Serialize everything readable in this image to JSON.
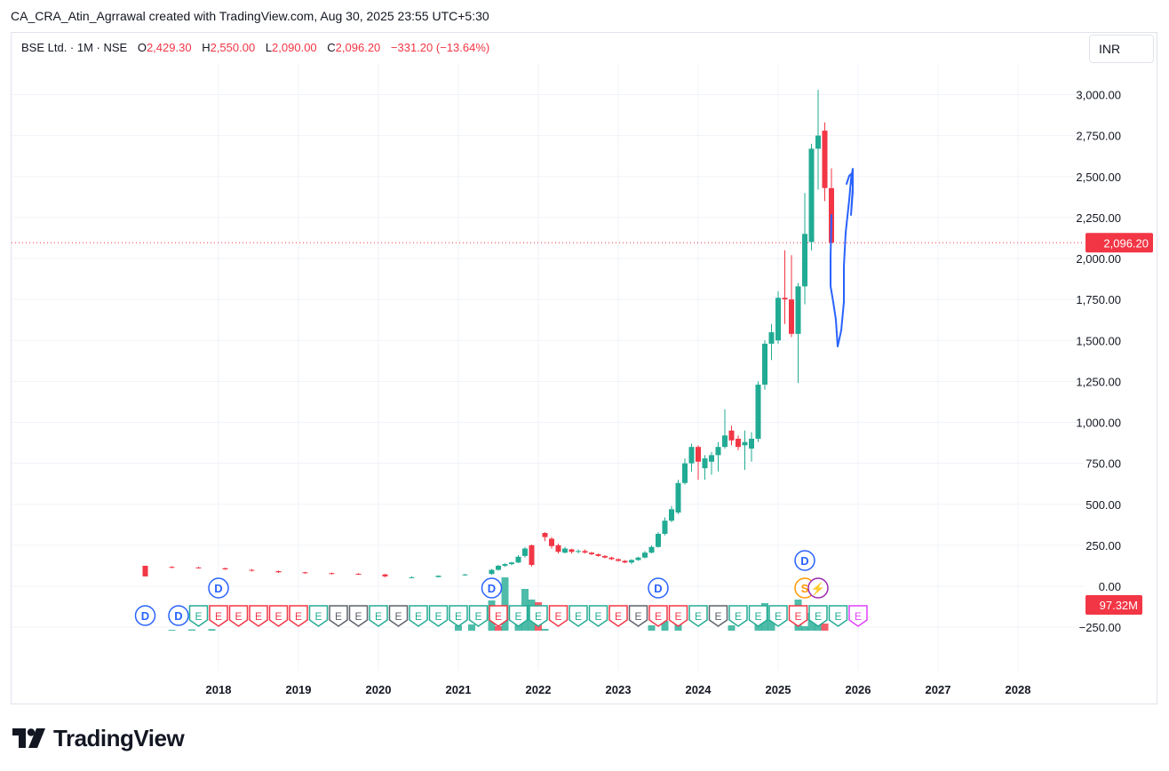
{
  "header": {
    "attribution": "CA_CRA_Atin_Agrrawal created with TradingView.com, Aug 30, 2025 23:55 UTC+5:30"
  },
  "legend": {
    "symbol": "BSE Ltd. · 1M · NSE",
    "open_label": "O",
    "open": "2,429.30",
    "high_label": "H",
    "high": "2,550.00",
    "low_label": "L",
    "low": "2,090.00",
    "close_label": "C",
    "close": "2,096.20",
    "change": "−331.20 (−13.64%)"
  },
  "currency": "INR",
  "logo": {
    "text": "TradingView"
  },
  "colors": {
    "up": "#22ab94",
    "down": "#f23645",
    "drawing": "#2962ff",
    "grid": "#f0f3fa"
  },
  "chart_data": {
    "type": "candlestick",
    "y_axis": {
      "ticks": [
        3000,
        2750,
        2500,
        2250,
        2000,
        1750,
        1500,
        1250,
        1000,
        750,
        500,
        250,
        0,
        -250
      ],
      "tick_labels": [
        "3,000.00",
        "2,750.00",
        "2,500.00",
        "2,250.00",
        "2,000.00",
        "1,750.00",
        "1,500.00",
        "1,250.00",
        "1,000.00",
        "750.00",
        "500.00",
        "250.00",
        "0.00",
        "−250.00"
      ]
    },
    "x_axis": {
      "ticks": [
        2018,
        2019,
        2020,
        2021,
        2022,
        2023,
        2024,
        2025,
        2026,
        2027,
        2028
      ],
      "tick_labels": [
        "2018",
        "2019",
        "2020",
        "2021",
        "2022",
        "2023",
        "2024",
        "2025",
        "2026",
        "2027",
        "2028"
      ]
    },
    "last_price_label": "2,096.20",
    "volume_label": "97.32M",
    "series": [
      {
        "ohlc": [
          {
            "d": "2017-02",
            "o": 125,
            "h": 125,
            "l": 60,
            "c": 60
          },
          {
            "d": "2017-06",
            "o": 118,
            "h": 122,
            "l": 110,
            "c": 115
          },
          {
            "d": "2017-10",
            "o": 115,
            "h": 118,
            "l": 108,
            "c": 112
          },
          {
            "d": "2018-02",
            "o": 110,
            "h": 113,
            "l": 100,
            "c": 103
          },
          {
            "d": "2018-06",
            "o": 100,
            "h": 104,
            "l": 90,
            "c": 95
          },
          {
            "d": "2018-10",
            "o": 92,
            "h": 96,
            "l": 82,
            "c": 85
          },
          {
            "d": "2019-02",
            "o": 85,
            "h": 88,
            "l": 76,
            "c": 80
          },
          {
            "d": "2019-06",
            "o": 80,
            "h": 83,
            "l": 72,
            "c": 76
          },
          {
            "d": "2019-10",
            "o": 76,
            "h": 80,
            "l": 70,
            "c": 75
          },
          {
            "d": "2020-02",
            "o": 72,
            "h": 75,
            "l": 55,
            "c": 60
          },
          {
            "d": "2020-06",
            "o": 55,
            "h": 60,
            "l": 48,
            "c": 55
          },
          {
            "d": "2020-10",
            "o": 56,
            "h": 66,
            "l": 54,
            "c": 64
          },
          {
            "d": "2021-02",
            "o": 68,
            "h": 75,
            "l": 65,
            "c": 72
          },
          {
            "d": "2021-06",
            "o": 75,
            "h": 105,
            "l": 70,
            "c": 100
          },
          {
            "d": "2021-07",
            "o": 100,
            "h": 130,
            "l": 95,
            "c": 125
          },
          {
            "d": "2021-08",
            "o": 125,
            "h": 140,
            "l": 118,
            "c": 135
          },
          {
            "d": "2021-09",
            "o": 135,
            "h": 150,
            "l": 128,
            "c": 145
          },
          {
            "d": "2021-10",
            "o": 145,
            "h": 190,
            "l": 140,
            "c": 180
          },
          {
            "d": "2021-11",
            "o": 185,
            "h": 240,
            "l": 175,
            "c": 230
          },
          {
            "d": "2021-12",
            "o": 250,
            "h": 255,
            "l": 120,
            "c": 130
          },
          {
            "d": "2022-02",
            "o": 325,
            "h": 330,
            "l": 275,
            "c": 300
          },
          {
            "d": "2022-03",
            "o": 290,
            "h": 300,
            "l": 230,
            "c": 245
          },
          {
            "d": "2022-04",
            "o": 250,
            "h": 260,
            "l": 200,
            "c": 210
          },
          {
            "d": "2022-05",
            "o": 205,
            "h": 240,
            "l": 200,
            "c": 230
          },
          {
            "d": "2022-06",
            "o": 225,
            "h": 230,
            "l": 200,
            "c": 210
          },
          {
            "d": "2022-07",
            "o": 210,
            "h": 225,
            "l": 200,
            "c": 215
          },
          {
            "d": "2022-08",
            "o": 215,
            "h": 225,
            "l": 200,
            "c": 205
          },
          {
            "d": "2022-09",
            "o": 205,
            "h": 210,
            "l": 190,
            "c": 195
          },
          {
            "d": "2022-10",
            "o": 195,
            "h": 200,
            "l": 180,
            "c": 185
          },
          {
            "d": "2022-11",
            "o": 185,
            "h": 190,
            "l": 170,
            "c": 175
          },
          {
            "d": "2022-12",
            "o": 175,
            "h": 180,
            "l": 160,
            "c": 165
          },
          {
            "d": "2023-01",
            "o": 165,
            "h": 170,
            "l": 150,
            "c": 155
          },
          {
            "d": "2023-02",
            "o": 155,
            "h": 160,
            "l": 140,
            "c": 145
          },
          {
            "d": "2023-03",
            "o": 145,
            "h": 165,
            "l": 135,
            "c": 160
          },
          {
            "d": "2023-04",
            "o": 160,
            "h": 180,
            "l": 155,
            "c": 175
          },
          {
            "d": "2023-05",
            "o": 175,
            "h": 215,
            "l": 170,
            "c": 205
          },
          {
            "d": "2023-06",
            "o": 205,
            "h": 250,
            "l": 200,
            "c": 240
          },
          {
            "d": "2023-07",
            "o": 240,
            "h": 330,
            "l": 235,
            "c": 320
          },
          {
            "d": "2023-08",
            "o": 320,
            "h": 420,
            "l": 310,
            "c": 400
          },
          {
            "d": "2023-09",
            "o": 400,
            "h": 490,
            "l": 390,
            "c": 470
          },
          {
            "d": "2023-10",
            "o": 450,
            "h": 650,
            "l": 440,
            "c": 630
          },
          {
            "d": "2023-11",
            "o": 630,
            "h": 780,
            "l": 620,
            "c": 750
          },
          {
            "d": "2023-12",
            "o": 750,
            "h": 870,
            "l": 700,
            "c": 850
          },
          {
            "d": "2024-01",
            "o": 850,
            "h": 860,
            "l": 650,
            "c": 760
          },
          {
            "d": "2024-02",
            "o": 720,
            "h": 800,
            "l": 650,
            "c": 780
          },
          {
            "d": "2024-03",
            "o": 760,
            "h": 820,
            "l": 680,
            "c": 800
          },
          {
            "d": "2024-04",
            "o": 800,
            "h": 880,
            "l": 700,
            "c": 850
          },
          {
            "d": "2024-05",
            "o": 850,
            "h": 1080,
            "l": 840,
            "c": 920
          },
          {
            "d": "2024-06",
            "o": 950,
            "h": 980,
            "l": 860,
            "c": 890
          },
          {
            "d": "2024-07",
            "o": 900,
            "h": 920,
            "l": 830,
            "c": 850
          },
          {
            "d": "2024-08",
            "o": 860,
            "h": 950,
            "l": 710,
            "c": 880
          },
          {
            "d": "2024-09",
            "o": 840,
            "h": 940,
            "l": 760,
            "c": 900
          },
          {
            "d": "2024-10",
            "o": 900,
            "h": 1250,
            "l": 880,
            "c": 1230
          },
          {
            "d": "2024-11",
            "o": 1230,
            "h": 1500,
            "l": 1200,
            "c": 1480
          },
          {
            "d": "2024-12",
            "o": 1480,
            "h": 1600,
            "l": 1380,
            "c": 1550
          },
          {
            "d": "2025-01",
            "o": 1500,
            "h": 1800,
            "l": 1480,
            "c": 1760
          },
          {
            "d": "2025-02",
            "o": 1760,
            "h": 2050,
            "l": 1600,
            "c": 1750
          },
          {
            "d": "2025-03",
            "o": 1750,
            "h": 2020,
            "l": 1520,
            "c": 1540
          },
          {
            "d": "2025-04",
            "o": 1540,
            "h": 1850,
            "l": 1240,
            "c": 1830
          },
          {
            "d": "2025-05",
            "o": 1830,
            "h": 2400,
            "l": 1720,
            "c": 2150
          },
          {
            "d": "2025-06",
            "o": 2100,
            "h": 2700,
            "l": 2050,
            "c": 2670
          },
          {
            "d": "2025-07",
            "o": 2670,
            "h": 3030,
            "l": 2420,
            "c": 2750
          },
          {
            "d": "2025-08",
            "o": 2780,
            "h": 2830,
            "l": 2350,
            "c": 2430
          },
          {
            "d": "2025-09",
            "o": 2429.3,
            "h": 2550,
            "l": 2090,
            "c": 2096.2
          }
        ]
      },
      {
        "name": "Volume",
        "bars": [
          {
            "d": "2017-06",
            "v": 10,
            "up": true
          },
          {
            "d": "2017-09",
            "v": 14,
            "up": true
          },
          {
            "d": "2017-12",
            "v": 18,
            "up": true
          },
          {
            "d": "2021-01",
            "v": 60,
            "up": true
          },
          {
            "d": "2021-03",
            "v": 70,
            "up": true
          },
          {
            "d": "2021-06",
            "v": 340,
            "up": true
          },
          {
            "d": "2021-07",
            "v": 50,
            "up": false
          },
          {
            "d": "2021-08",
            "v": 600,
            "up": true
          },
          {
            "d": "2021-10",
            "v": 130,
            "up": true
          },
          {
            "d": "2021-11",
            "v": 470,
            "up": true
          },
          {
            "d": "2021-12",
            "v": 350,
            "up": true
          },
          {
            "d": "2022-01",
            "v": 320,
            "up": false
          },
          {
            "d": "2022-02",
            "v": 20,
            "up": true
          },
          {
            "d": "2023-06",
            "v": 60,
            "up": true
          },
          {
            "d": "2023-08",
            "v": 110,
            "up": true
          },
          {
            "d": "2023-10",
            "v": 80,
            "up": true
          },
          {
            "d": "2024-06",
            "v": 60,
            "up": true
          },
          {
            "d": "2024-10",
            "v": 200,
            "up": true
          },
          {
            "d": "2024-11",
            "v": 310,
            "up": true
          },
          {
            "d": "2024-12",
            "v": 120,
            "up": true
          },
          {
            "d": "2025-04",
            "v": 350,
            "up": true
          },
          {
            "d": "2025-05",
            "v": 50,
            "up": true
          },
          {
            "d": "2025-06",
            "v": 200,
            "up": true
          },
          {
            "d": "2025-07",
            "v": 240,
            "up": true
          },
          {
            "d": "2025-08",
            "v": 80,
            "up": false
          }
        ]
      }
    ],
    "event_markers": [
      {
        "d": "2017-02",
        "t": "D",
        "kind": "dividend"
      },
      {
        "d": "2017-07",
        "t": "D",
        "kind": "dividend"
      },
      {
        "d": "2018-01",
        "t": "D",
        "kind": "dividend",
        "raised": true
      },
      {
        "d": "2021-06",
        "t": "D",
        "kind": "dividend",
        "raised": true
      },
      {
        "d": "2023-07",
        "t": "D",
        "kind": "dividend",
        "raised": true
      },
      {
        "d": "2025-05",
        "t": "D",
        "kind": "dividend",
        "raised2": true
      },
      {
        "d": "2025-05",
        "t": "S",
        "kind": "split",
        "raised": true
      },
      {
        "d": "2025-07",
        "t": "⚡",
        "kind": "event",
        "raised": true
      },
      {
        "d": "2017-10",
        "t": "E",
        "c": "green"
      },
      {
        "d": "2018-01",
        "t": "E",
        "c": "red"
      },
      {
        "d": "2018-04",
        "t": "E",
        "c": "red"
      },
      {
        "d": "2018-07",
        "t": "E",
        "c": "red"
      },
      {
        "d": "2018-10",
        "t": "E",
        "c": "red"
      },
      {
        "d": "2019-01",
        "t": "E",
        "c": "red"
      },
      {
        "d": "2019-04",
        "t": "E",
        "c": "green"
      },
      {
        "d": "2019-07",
        "t": "E",
        "c": "gray"
      },
      {
        "d": "2019-10",
        "t": "E",
        "c": "gray"
      },
      {
        "d": "2020-01",
        "t": "E",
        "c": "green"
      },
      {
        "d": "2020-04",
        "t": "E",
        "c": "gray"
      },
      {
        "d": "2020-07",
        "t": "E",
        "c": "green"
      },
      {
        "d": "2020-10",
        "t": "E",
        "c": "green"
      },
      {
        "d": "2021-01",
        "t": "E",
        "c": "green"
      },
      {
        "d": "2021-04",
        "t": "E",
        "c": "green"
      },
      {
        "d": "2021-07",
        "t": "E",
        "c": "red"
      },
      {
        "d": "2021-10",
        "t": "E",
        "c": "green"
      },
      {
        "d": "2022-01",
        "t": "E",
        "c": "green"
      },
      {
        "d": "2022-04",
        "t": "E",
        "c": "red"
      },
      {
        "d": "2022-07",
        "t": "E",
        "c": "green"
      },
      {
        "d": "2022-10",
        "t": "E",
        "c": "green"
      },
      {
        "d": "2023-01",
        "t": "E",
        "c": "red"
      },
      {
        "d": "2023-04",
        "t": "E",
        "c": "gray"
      },
      {
        "d": "2023-07",
        "t": "E",
        "c": "red"
      },
      {
        "d": "2023-10",
        "t": "E",
        "c": "red"
      },
      {
        "d": "2024-01",
        "t": "E",
        "c": "green"
      },
      {
        "d": "2024-04",
        "t": "E",
        "c": "gray"
      },
      {
        "d": "2024-07",
        "t": "E",
        "c": "green"
      },
      {
        "d": "2024-10",
        "t": "E",
        "c": "green"
      },
      {
        "d": "2025-01",
        "t": "E",
        "c": "green"
      },
      {
        "d": "2025-04",
        "t": "E",
        "c": "red"
      },
      {
        "d": "2025-07",
        "t": "E",
        "c": "green"
      },
      {
        "d": "2025-10",
        "t": "E",
        "c": "green"
      },
      {
        "d": "2026-01",
        "t": "E",
        "c": "magenta"
      }
    ]
  }
}
